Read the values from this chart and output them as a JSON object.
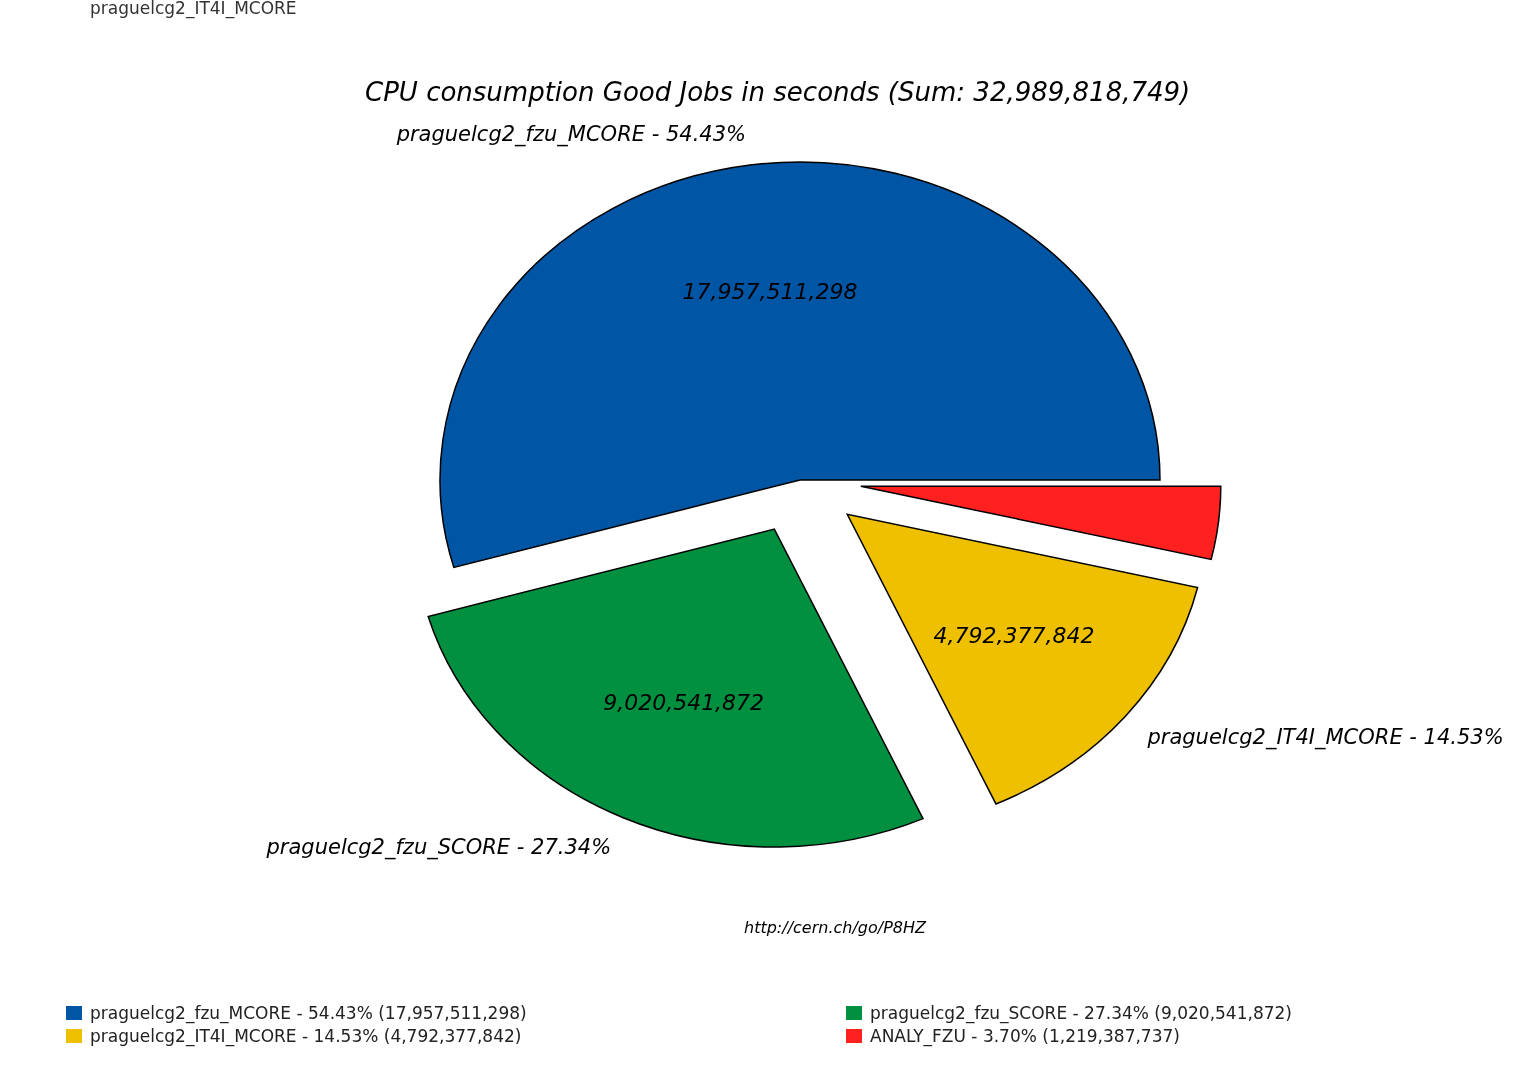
{
  "chart_data": {
    "type": "pie",
    "title": "CPU consumption Good Jobs in seconds (Sum: 32,989,818,749)",
    "categories": [
      "praguelcg2_fzu_MCORE - 54.43% (17,957,511,298)",
      "praguelcg2_fzu_SCORE - 27.34% (9,020,541,872)",
      "praguelcg2_IT4I_MCORE - 14.53% (4,792,377,842)",
      "ANALY_FZU - 3.70% (1,219,387,737)"
    ],
    "values": [
      17957511298,
      9020541872,
      4792377842,
      1219387737
    ],
    "colors": [
      "#0055a5",
      "#009040",
      "#eec000",
      "#ff2020"
    ],
    "value_labels": [
      "17,957,511,298",
      "9,020,541,872",
      "4,792,377,842",
      null
    ],
    "legend": "bottom",
    "annotations": [
      "praguelcg2_fzu_MCORE - 54.43%",
      "praguelcg2_fzu_SCORE - 27.34%",
      "praguelcg2_IT4I_MCORE - 14.53%",
      "http://cern.ch/go/P8HZ",
      "praguelcg2_IT4I_MCORE"
    ]
  }
}
